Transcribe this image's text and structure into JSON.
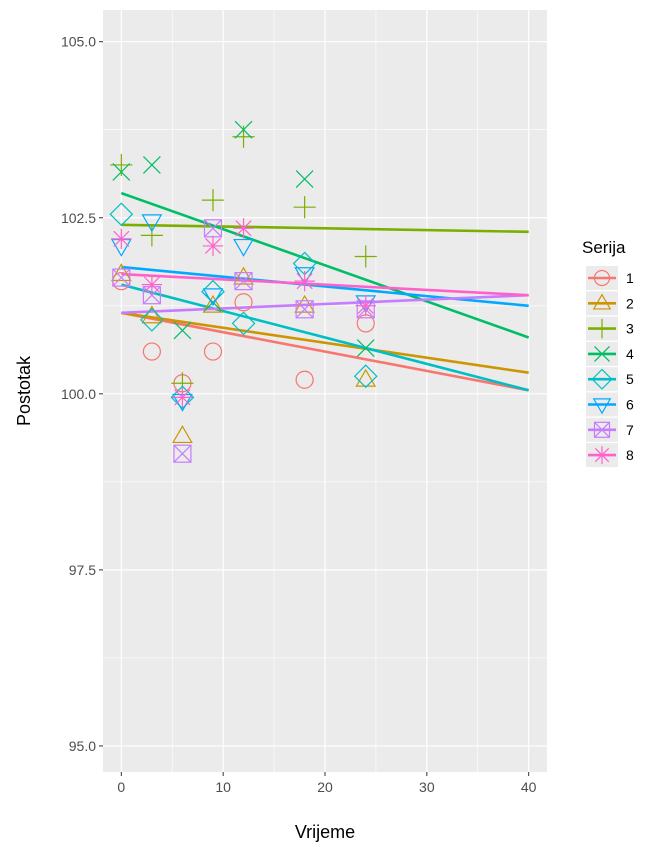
{
  "chart_data": {
    "type": "scatter",
    "title": "",
    "xlabel": "Vrijeme",
    "ylabel": "Postotak",
    "xlim": [
      -1.8,
      41.8
    ],
    "ylim": [
      94.63,
      105.45
    ],
    "x_ticks": [
      0,
      10,
      20,
      30,
      40
    ],
    "y_ticks": [
      95.0,
      97.5,
      100.0,
      102.5,
      105.0
    ],
    "x_tick_labels": [
      "0",
      "10",
      "20",
      "30",
      "40"
    ],
    "y_tick_labels": [
      "95.0",
      "97.5",
      "100.0",
      "102.5",
      "105.0"
    ],
    "grid": true,
    "legend": {
      "title": "Serija",
      "position": "right"
    },
    "series": [
      {
        "name": "1",
        "color": "#F8766D",
        "shape": "circle",
        "points": [
          [
            0,
            101.6
          ],
          [
            3,
            100.6
          ],
          [
            6,
            100.15
          ],
          [
            9,
            100.6
          ],
          [
            12,
            101.3
          ],
          [
            18,
            100.2
          ],
          [
            24,
            101.0
          ]
        ],
        "fit": [
          [
            0,
            101.15
          ],
          [
            40,
            100.05
          ]
        ]
      },
      {
        "name": "2",
        "color": "#CD9600",
        "shape": "triangle",
        "points": [
          [
            0,
            101.7
          ],
          [
            3,
            101.1
          ],
          [
            6,
            99.4
          ],
          [
            9,
            101.25
          ],
          [
            12,
            101.65
          ],
          [
            18,
            101.25
          ],
          [
            24,
            100.2
          ]
        ],
        "fit": [
          [
            0,
            101.15
          ],
          [
            40,
            100.3
          ]
        ]
      },
      {
        "name": "3",
        "color": "#7CAE00",
        "shape": "plus",
        "points": [
          [
            0,
            103.25
          ],
          [
            3,
            102.25
          ],
          [
            6,
            100.15
          ],
          [
            9,
            102.75
          ],
          [
            12,
            103.65
          ],
          [
            18,
            102.65
          ],
          [
            24,
            101.95
          ]
        ],
        "fit": [
          [
            0,
            102.4
          ],
          [
            40,
            102.3
          ]
        ]
      },
      {
        "name": "4",
        "color": "#00BE67",
        "shape": "cross",
        "points": [
          [
            0,
            103.15
          ],
          [
            3,
            103.25
          ],
          [
            6,
            100.9
          ],
          [
            9,
            101.3
          ],
          [
            12,
            103.75
          ],
          [
            18,
            103.05
          ],
          [
            24,
            100.65
          ]
        ],
        "fit": [
          [
            0,
            102.85
          ],
          [
            40,
            100.8
          ]
        ]
      },
      {
        "name": "5",
        "color": "#00BFC4",
        "shape": "diamond",
        "points": [
          [
            0,
            102.55
          ],
          [
            3,
            101.05
          ],
          [
            6,
            99.95
          ],
          [
            9,
            101.45
          ],
          [
            12,
            101.0
          ],
          [
            18,
            101.85
          ],
          [
            24,
            100.25
          ]
        ],
        "fit": [
          [
            0,
            101.55
          ],
          [
            40,
            100.05
          ]
        ]
      },
      {
        "name": "6",
        "color": "#00A9FF",
        "shape": "triangle-down",
        "points": [
          [
            0,
            102.1
          ],
          [
            3,
            102.45
          ],
          [
            6,
            99.9
          ],
          [
            9,
            101.4
          ],
          [
            12,
            102.1
          ],
          [
            18,
            101.7
          ],
          [
            24,
            101.3
          ]
        ],
        "fit": [
          [
            0,
            101.8
          ],
          [
            40,
            101.25
          ]
        ]
      },
      {
        "name": "7",
        "color": "#C77CFF",
        "shape": "square-x",
        "points": [
          [
            0,
            101.65
          ],
          [
            3,
            101.4
          ],
          [
            6,
            99.15
          ],
          [
            9,
            102.35
          ],
          [
            12,
            101.6
          ],
          [
            18,
            101.2
          ],
          [
            24,
            101.2
          ]
        ],
        "fit": [
          [
            0,
            101.15
          ],
          [
            40,
            101.4
          ]
        ]
      },
      {
        "name": "8",
        "color": "#FF61CC",
        "shape": "asterisk",
        "points": [
          [
            0,
            102.2
          ],
          [
            3,
            101.55
          ],
          [
            6,
            99.95
          ],
          [
            9,
            102.1
          ],
          [
            12,
            102.35
          ],
          [
            18,
            101.6
          ],
          [
            24,
            101.25
          ]
        ],
        "fit": [
          [
            0,
            101.7
          ],
          [
            40,
            101.4
          ]
        ]
      }
    ]
  }
}
